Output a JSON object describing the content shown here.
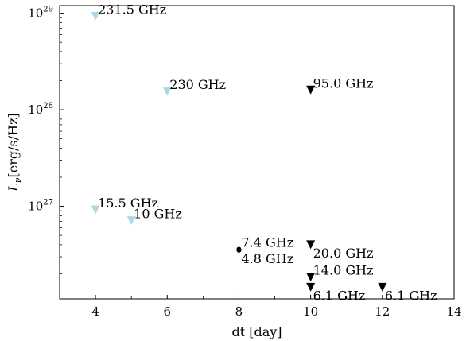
{
  "chart_data": {
    "type": "scatter",
    "title": "",
    "xlabel": "dt [day]",
    "ylabel_symbol": "L",
    "ylabel_subscript": "ν",
    "ylabel_units": "[erg/s/Hz]",
    "xlim": [
      3,
      14
    ],
    "ylim": [
      1.1e+26,
      1.2e+29
    ],
    "y_scale": "log",
    "grid": false,
    "x_ticks": [
      4,
      6,
      8,
      10,
      12,
      14
    ],
    "y_major_ticks": [
      {
        "value": 1e+27,
        "base": "10",
        "exp": "27"
      },
      {
        "value": 1e+28,
        "base": "10",
        "exp": "28"
      },
      {
        "value": 1e+29,
        "base": "10",
        "exp": "29"
      }
    ],
    "colors": {
      "light_blue": "#add8e6",
      "black": "#000000"
    },
    "points": [
      {
        "x": 4.0,
        "y": 9.3e+28,
        "marker": "triangle-down",
        "color": "light_blue",
        "label": "231.5 GHz",
        "label_pos": "right-top"
      },
      {
        "x": 6.0,
        "y": 1.55e+28,
        "marker": "triangle-down",
        "color": "light_blue",
        "label": "230 GHz",
        "label_pos": "right-top"
      },
      {
        "x": 10.0,
        "y": 1.6e+28,
        "marker": "triangle-down",
        "color": "black",
        "label": "95.0 GHz",
        "label_pos": "right-top"
      },
      {
        "x": 4.0,
        "y": 9.2e+26,
        "marker": "triangle-down",
        "color": "light_blue",
        "label": "15.5 GHz",
        "label_pos": "right-top"
      },
      {
        "x": 5.0,
        "y": 7.1e+26,
        "marker": "triangle-down",
        "color": "light_blue",
        "label": "10 GHz",
        "label_pos": "right-top"
      },
      {
        "x": 8.0,
        "y": 3.6e+26,
        "marker": "circle",
        "color": "black",
        "label": "7.4 GHz",
        "label_pos": "right-top"
      },
      {
        "x": 8.0,
        "y": 3.5e+26,
        "marker": "circle",
        "color": "black",
        "label": "4.8 GHz",
        "label_pos": "right-bottom"
      },
      {
        "x": 10.0,
        "y": 4e+26,
        "marker": "triangle-down",
        "color": "black",
        "label": "20.0 GHz",
        "label_pos": "right-bottom"
      },
      {
        "x": 10.0,
        "y": 1.85e+26,
        "marker": "triangle-down",
        "color": "black",
        "label": "14.0 GHz",
        "label_pos": "right-top"
      },
      {
        "x": 10.0,
        "y": 1.45e+26,
        "marker": "triangle-down",
        "color": "black",
        "label": "6.1 GHz",
        "label_pos": "right-bottom"
      },
      {
        "x": 12.0,
        "y": 1.45e+26,
        "marker": "triangle-down",
        "color": "black",
        "label": "6.1 GHz",
        "label_pos": "right-bottom"
      }
    ]
  }
}
